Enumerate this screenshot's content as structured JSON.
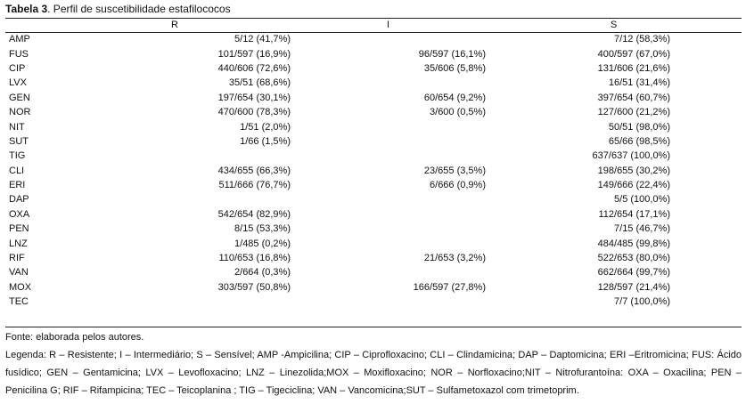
{
  "caption": {
    "label": "Tabela 3",
    "text": ". Perfil de suscetibilidade estafilococos"
  },
  "columns": [
    "",
    "R",
    "I",
    "S"
  ],
  "rows": [
    {
      "drug": "AMP",
      "R": "5/12 (41,7%)",
      "I": "",
      "S": "7/12 (58,3%)"
    },
    {
      "drug": "FUS",
      "R": "101/597 (16,9%)",
      "I": "96/597 (16,1%)",
      "S": "400/597 (67,0%)"
    },
    {
      "drug": "CIP",
      "R": "440/606 (72,6%)",
      "I": "35/606 (5,8%)",
      "S": "131/606 (21,6%)"
    },
    {
      "drug": "LVX",
      "R": "35/51 (68,6%)",
      "I": "",
      "S": "16/51 (31,4%)"
    },
    {
      "drug": "GEN",
      "R": "197/654 (30,1%)",
      "I": "60/654 (9,2%)",
      "S": "397/654 (60,7%)"
    },
    {
      "drug": "NOR",
      "R": "470/600 (78,3%)",
      "I": "3/600 (0,5%)",
      "S": "127/600 (21,2%)"
    },
    {
      "drug": "NIT",
      "R": "1/51 (2,0%)",
      "I": "",
      "S": "50/51 (98,0%)"
    },
    {
      "drug": "SUT",
      "R": "1/66 (1,5%)",
      "I": "",
      "S": "65/66 (98,5%)"
    },
    {
      "drug": "TIG",
      "R": "",
      "I": "",
      "S": "637/637 (100,0%)"
    },
    {
      "drug": "CLI",
      "R": "434/655 (66,3%)",
      "I": "23/655 (3,5%)",
      "S": "198/655 (30,2%)"
    },
    {
      "drug": "ERI",
      "R": "511/666 (76,7%)",
      "I": "6/666 (0,9%)",
      "S": "149/666 (22,4%)"
    },
    {
      "drug": "DAP",
      "R": "",
      "I": "",
      "S": "5/5 (100,0%)"
    },
    {
      "drug": "OXA",
      "R": "542/654 (82,9%)",
      "I": "",
      "S": "112/654 (17,1%)"
    },
    {
      "drug": "PEN",
      "R": "8/15 (53,3%)",
      "I": "",
      "S": "7/15 (46,7%)"
    },
    {
      "drug": "LNZ",
      "R": "1/485 (0,2%)",
      "I": "",
      "S": "484/485 (99,8%)"
    },
    {
      "drug": "RIF",
      "R": "110/653 (16,8%)",
      "I": "21/653 (3,2%)",
      "S": "522/653 (80,0%)"
    },
    {
      "drug": "VAN",
      "R": "2/664 (0,3%)",
      "I": "",
      "S": "662/664 (99,7%)"
    },
    {
      "drug": "MOX",
      "R": "303/597 (50,8%)",
      "I": "166/597 (27,8%)",
      "S": "128/597 (21,4%)"
    },
    {
      "drug": "TEC",
      "R": "",
      "I": "",
      "S": "7/7 (100,0%)"
    }
  ],
  "source": "Fonte: elaborada pelos autores.",
  "legend": "Legenda: R – Resistente; I – Intermediário; S – Sensível; AMP -Ampicilina; CIP – Ciprofloxacino; CLI – Clindamicina; DAP – Daptomicina; ERI –Eritromicina; FUS: Ácido fusídico; GEN – Gentamicina; LVX – Levofloxacino; LNZ – Linezolida;MOX – Moxifloxacino; NOR – Norfloxacino;NIT – Nitrofurantoína: OXA – Oxacilina; PEN – Penicilina G; RIF – Rifampicina; TEC – Teicoplanina ; TIG – Tigeciclina; VAN – Vancomicina;SUT – Sulfametoxazol com trimetoprim."
}
